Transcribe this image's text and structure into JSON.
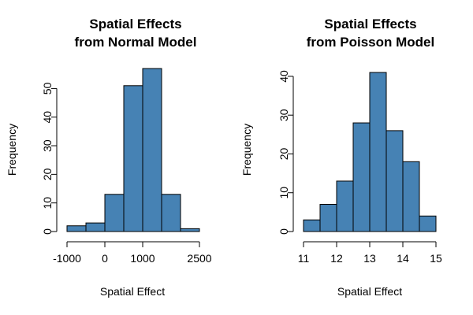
{
  "colors": {
    "bar_fill": "#4682B4",
    "bar_stroke": "#000000",
    "background": "#ffffff"
  },
  "chart_data": [
    {
      "type": "bar",
      "title_line1": "Spatial Effects",
      "title_line2": "from Normal Model",
      "xlabel": "Spatial Effect",
      "ylabel": "Frequency",
      "bins": [
        [
          -1000,
          -500
        ],
        [
          -500,
          0
        ],
        [
          0,
          500
        ],
        [
          500,
          1000
        ],
        [
          1000,
          1500
        ],
        [
          1500,
          2000
        ],
        [
          2000,
          2500
        ]
      ],
      "values": [
        2,
        3,
        13,
        51,
        57,
        13,
        1
      ],
      "xlim": [
        -1000,
        2500
      ],
      "ylim": [
        0,
        57
      ],
      "x_ticks": [
        -1000,
        0,
        1000,
        2500
      ],
      "x_tick_labels": [
        "-1000",
        "0",
        "1000",
        "2500"
      ],
      "y_ticks": [
        0,
        10,
        20,
        30,
        40,
        50
      ],
      "y_tick_labels": [
        "0",
        "10",
        "20",
        "30",
        "40",
        "50"
      ],
      "grid": false,
      "legend": "none"
    },
    {
      "type": "bar",
      "title_line1": "Spatial Effects",
      "title_line2": "from Poisson Model",
      "xlabel": "Spatial Effect",
      "ylabel": "Frequency",
      "bins": [
        [
          11,
          11.5
        ],
        [
          11.5,
          12
        ],
        [
          12,
          12.5
        ],
        [
          12.5,
          13
        ],
        [
          13,
          13.5
        ],
        [
          13.5,
          14
        ],
        [
          14,
          14.5
        ],
        [
          14.5,
          15
        ]
      ],
      "values": [
        3,
        7,
        13,
        28,
        41,
        26,
        18,
        4
      ],
      "xlim": [
        11,
        15
      ],
      "ylim": [
        0,
        41
      ],
      "x_ticks": [
        11,
        12,
        13,
        14,
        15
      ],
      "x_tick_labels": [
        "11",
        "12",
        "13",
        "14",
        "15"
      ],
      "y_ticks": [
        0,
        10,
        20,
        30,
        40
      ],
      "y_tick_labels": [
        "0",
        "10",
        "20",
        "30",
        "40"
      ],
      "grid": false,
      "legend": "none"
    }
  ]
}
